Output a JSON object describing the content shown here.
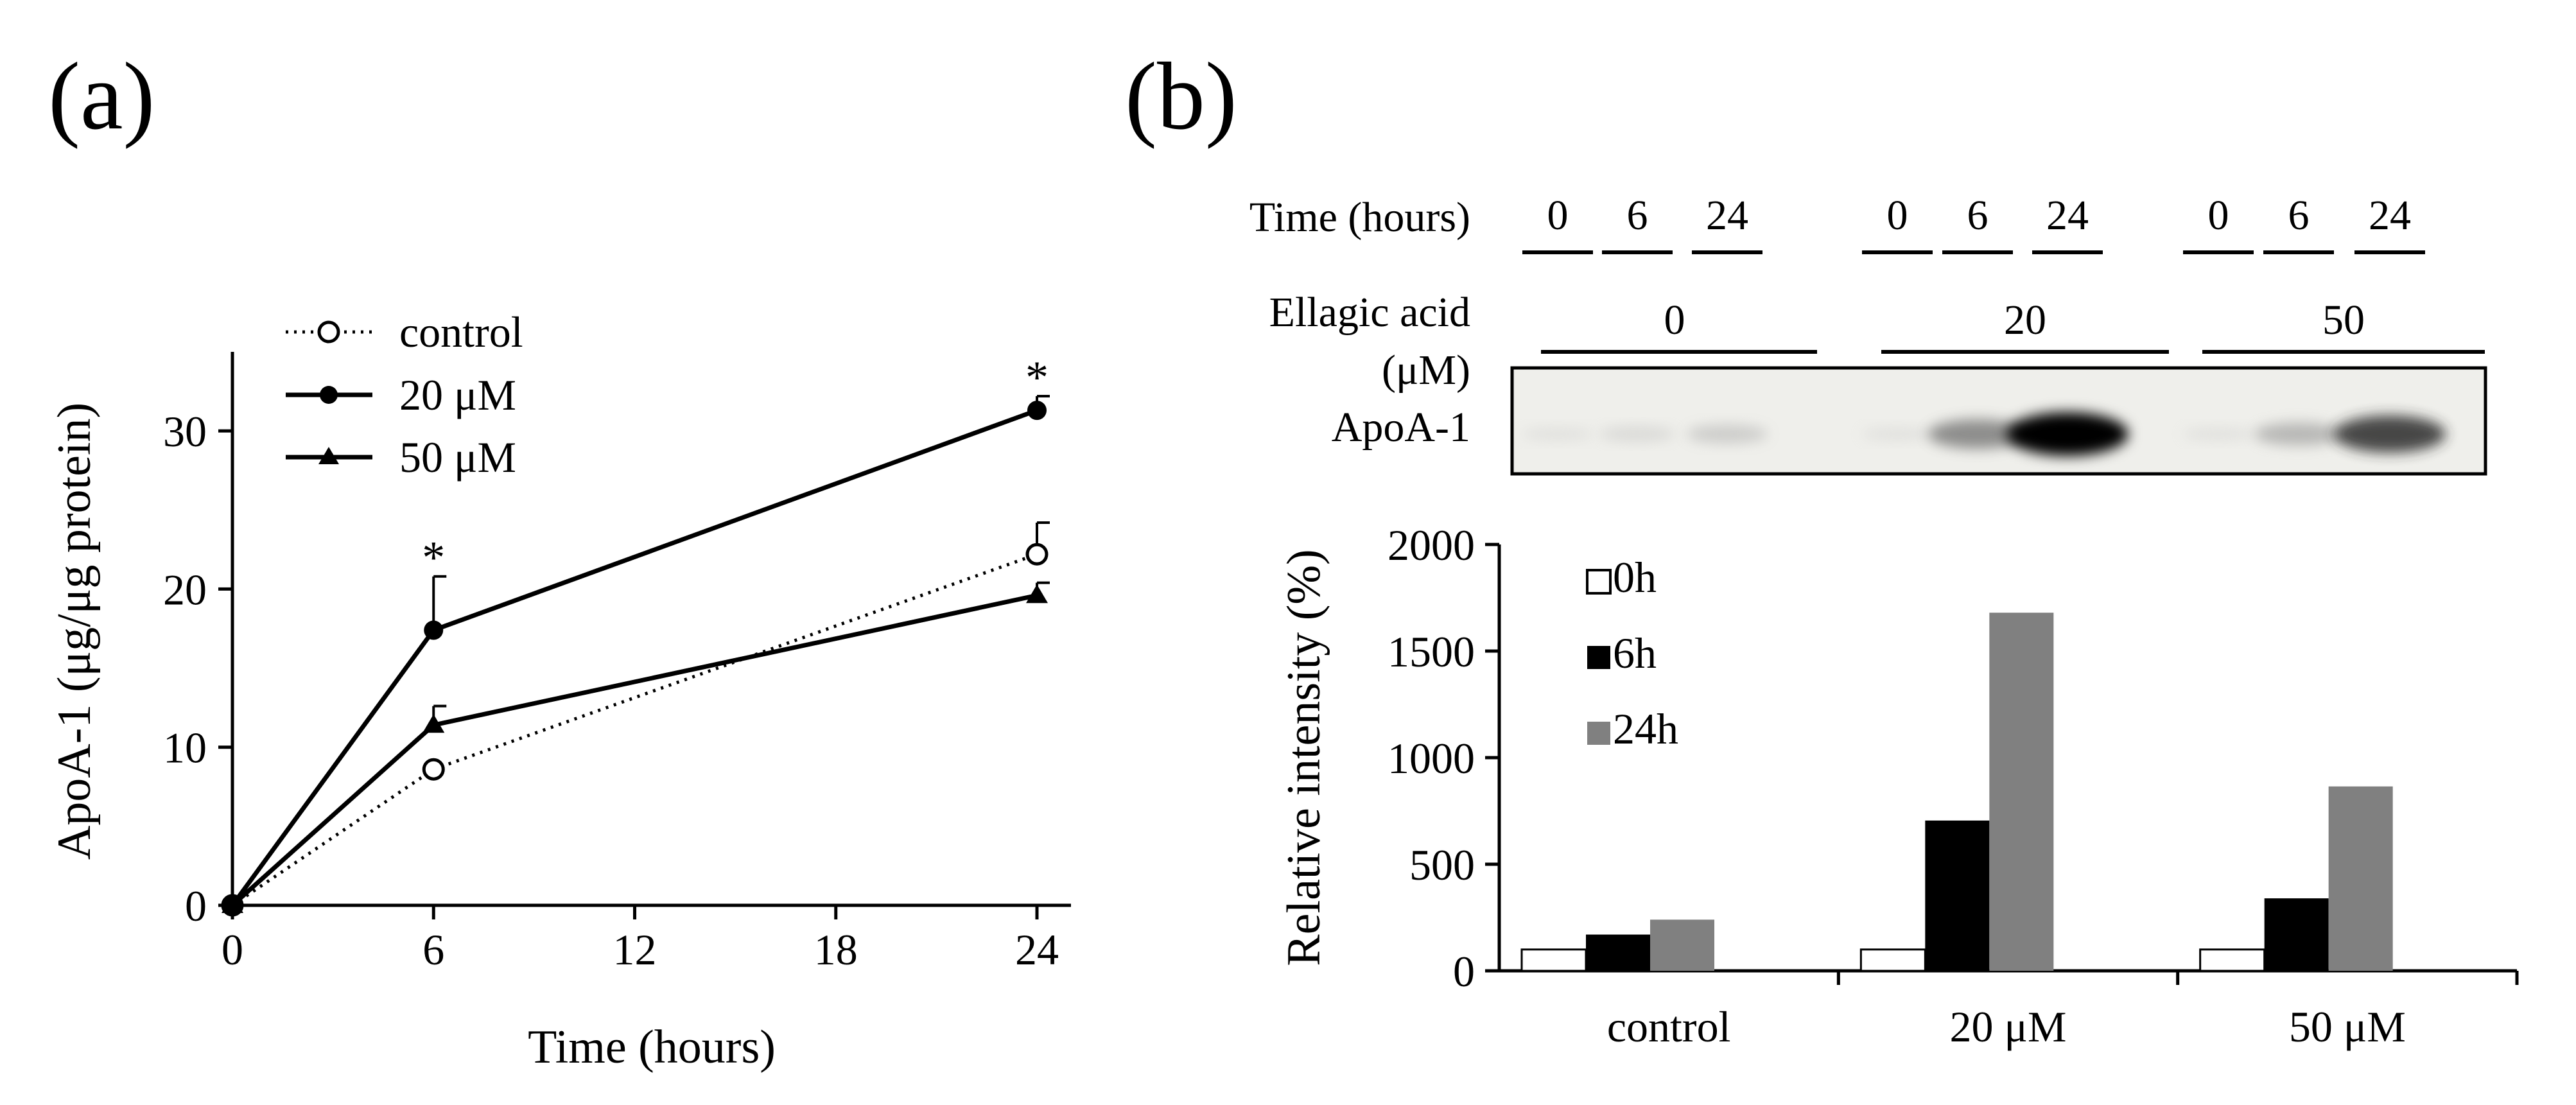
{
  "panel_labels": {
    "a": "(a)",
    "b": "(b)"
  },
  "colors": {
    "ink": "#000000",
    "bar_0h": "#ffffff",
    "bar_6h": "#000000",
    "bar_24h": "#808080",
    "blot_bg": "#efefeb"
  },
  "chart_data": [
    {
      "type": "line",
      "title": "",
      "xlabel": "Time (hours)",
      "ylabel": "ApoA-1 (μg/μg protein)",
      "xlim": [
        0,
        24.8
      ],
      "ylim": [
        0,
        35
      ],
      "x_ticks": [
        0,
        6,
        12,
        18,
        24
      ],
      "x_tick_labels": [
        "0",
        "6",
        "12",
        "18",
        "24"
      ],
      "y_ticks": [
        0,
        10,
        20,
        30
      ],
      "y_tick_labels": [
        "0",
        "10",
        "20",
        "30"
      ],
      "legend_position": "top-left",
      "series": [
        {
          "name": "control",
          "marker": "open-circle",
          "line": "dotted",
          "x": [
            0,
            6,
            24
          ],
          "values": [
            0,
            8.6,
            22.2
          ],
          "err": [
            0,
            0,
            2.0
          ]
        },
        {
          "name": "20 μM",
          "marker": "filled-circle",
          "line": "solid",
          "x": [
            0,
            6,
            24
          ],
          "values": [
            0,
            17.4,
            31.3
          ],
          "err": [
            0,
            3.4,
            0.9
          ]
        },
        {
          "name": "50 μM",
          "marker": "filled-triangle",
          "line": "solid",
          "x": [
            0,
            6,
            24
          ],
          "values": [
            0,
            11.4,
            19.6
          ],
          "err": [
            0,
            1.2,
            0.8
          ]
        }
      ],
      "annotations": [
        {
          "text": "*",
          "x": 6,
          "series": "20 μM"
        },
        {
          "text": "*",
          "x": 24,
          "series": "20 μM"
        }
      ]
    },
    {
      "type": "bar",
      "title": "",
      "xlabel": "",
      "ylabel": "Relative intensity (%)",
      "ylim": [
        0,
        2000
      ],
      "y_ticks": [
        0,
        500,
        1000,
        1500,
        2000
      ],
      "y_tick_labels": [
        "0",
        "500",
        "1000",
        "1500",
        "2000"
      ],
      "categories": [
        "control",
        "20 μM",
        "50 μM"
      ],
      "legend_position": "top-left",
      "series": [
        {
          "name": "0h",
          "color": "#ffffff",
          "values": [
            100,
            100,
            100
          ]
        },
        {
          "name": "6h",
          "color": "#000000",
          "values": [
            170,
            705,
            340
          ]
        },
        {
          "name": "24h",
          "color": "#808080",
          "values": [
            240,
            1680,
            865
          ]
        }
      ]
    }
  ],
  "blot": {
    "time_label": "Time (hours)",
    "time_lanes": [
      "0",
      "6",
      "24",
      "0",
      "6",
      "24",
      "0",
      "6",
      "24"
    ],
    "ellagic_label_line1": "Ellagic acid",
    "ellagic_label_line2": "(μM)",
    "ellagic_groups": [
      "0",
      "20",
      "50"
    ],
    "band_label": "ApoA-1",
    "band_intensity": [
      0.05,
      0.12,
      0.22,
      0.05,
      0.55,
      1.0,
      0.05,
      0.35,
      0.8
    ]
  }
}
